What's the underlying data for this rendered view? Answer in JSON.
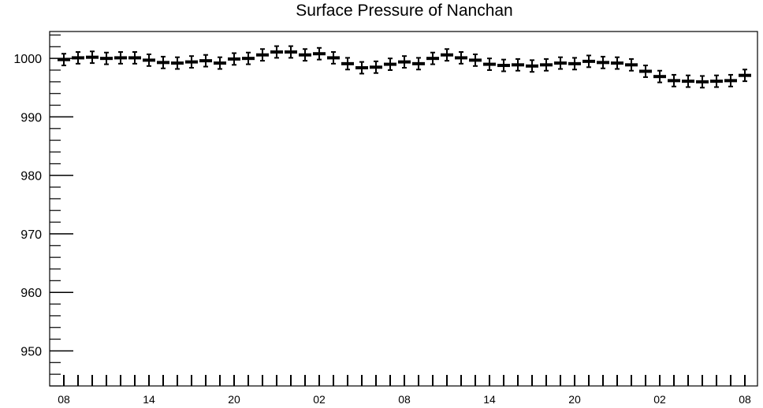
{
  "chart_data": {
    "type": "scatter",
    "title": "Surface Pressure of Nanchan",
    "xlabel": "",
    "ylabel": "",
    "ylim": [
      944,
      1004.6
    ],
    "y_ticks": [
      950,
      960,
      970,
      980,
      990,
      1000
    ],
    "x_tick_labels": [
      "08",
      "14",
      "20",
      "02",
      "08",
      "14",
      "20",
      "02",
      "08"
    ],
    "error_half_width": 1,
    "series": [
      {
        "values": [
          999.8,
          1000.1,
          1000.2,
          1000.0,
          1000.1,
          1000.1,
          999.7,
          999.3,
          999.2,
          999.4,
          999.6,
          999.2,
          999.9,
          1000.0,
          1000.6,
          1001.1,
          1001.1,
          1000.6,
          1000.8,
          1000.1,
          999.1,
          998.4,
          998.5,
          999.0,
          999.4,
          999.1,
          1000.0,
          1000.6,
          1000.1,
          999.7,
          999.0,
          998.8,
          998.9,
          998.7,
          998.9,
          999.2,
          999.1,
          999.5,
          999.3,
          999.2,
          998.9,
          997.8,
          996.9,
          996.2,
          996.1,
          996.0,
          996.1,
          996.2,
          997.1
        ]
      }
    ],
    "colors": {
      "marker": "#000000",
      "axis": "#000000",
      "background": "#ffffff"
    }
  }
}
